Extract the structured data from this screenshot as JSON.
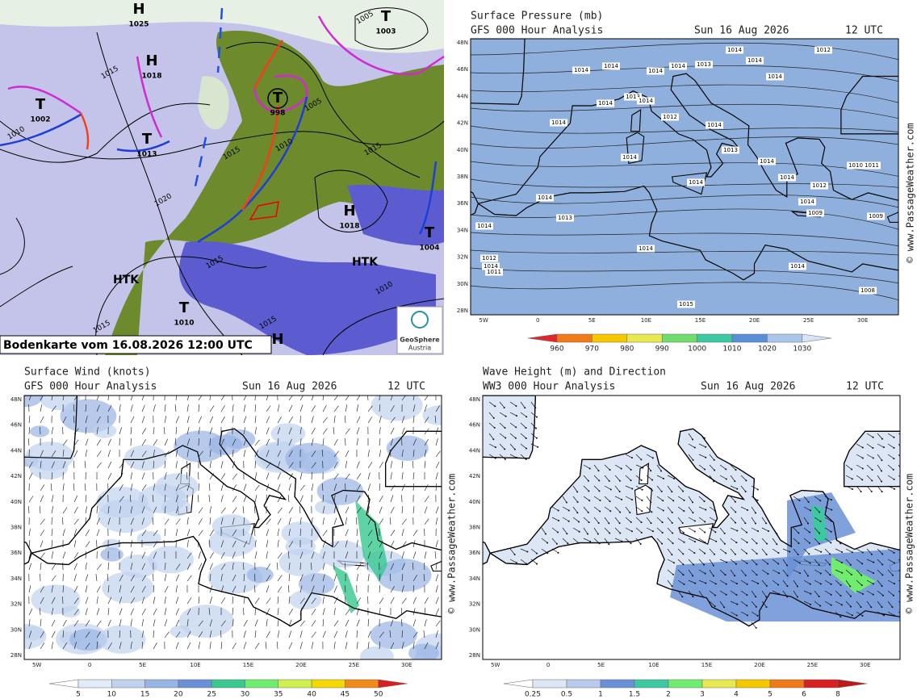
{
  "synoptic": {
    "caption": "Bodenkarte vom 16.08.2026 12:00 UTC",
    "logo": [
      "GeoSphere",
      "Austria"
    ],
    "centers": [
      {
        "letter": "H",
        "value": "1025"
      },
      {
        "letter": "H",
        "value": "1018"
      },
      {
        "letter": "T",
        "value": "1002"
      },
      {
        "letter": "T",
        "value": "1013"
      },
      {
        "letter": "T",
        "value": "998"
      },
      {
        "letter": "T",
        "value": "1003"
      },
      {
        "letter": "H",
        "value": "1018"
      },
      {
        "letter": "T",
        "value": "1004"
      },
      {
        "letter": "HTK",
        "value": null
      },
      {
        "letter": "HTK",
        "value": null
      },
      {
        "letter": "T",
        "value": "1010"
      },
      {
        "letter": "H",
        "value": null
      }
    ],
    "isobars": [
      "1015",
      "1010",
      "1015",
      "1010",
      "1015",
      "1005",
      "1020",
      "1015",
      "1010",
      "1015",
      "1015",
      "1005"
    ]
  },
  "lat_labels": [
    "48N",
    "46N",
    "44N",
    "42N",
    "40N",
    "38N",
    "36N",
    "34N",
    "32N",
    "30N",
    "28N"
  ],
  "lon_labels": [
    "5W",
    "0",
    "5E",
    "10E",
    "15E",
    "20E",
    "25E",
    "30E"
  ],
  "credit": "© www.PassageWeather.com",
  "panels": [
    {
      "title": "Surface Pressure (mb)",
      "model": "GFS 000 Hour Analysis",
      "date": "Sun 16 Aug 2026",
      "time": "12 UTC",
      "scale": [
        960,
        970,
        980,
        990,
        1000,
        1010,
        1020,
        1030
      ],
      "labels": [
        "1014",
        "1014",
        "1013",
        "1014",
        "1014",
        "1013",
        "1014",
        "1014",
        "1014",
        "1012",
        "1014",
        "1014",
        "1014",
        "1012",
        "1014",
        "1013",
        "1014",
        "1014",
        "1012",
        "1011",
        "1014",
        "1014",
        "1014",
        "1013",
        "1014",
        "1012",
        "1014",
        "1011",
        "1009",
        "1010",
        "1008",
        "1014",
        "1015",
        "1009",
        "1014",
        "1014"
      ]
    },
    {
      "title": "Surface Wind (knots)",
      "model": "GFS 000 Hour Analysis",
      "date": "Sun 16 Aug 2026",
      "time": "12 UTC",
      "scale": [
        5,
        10,
        15,
        20,
        25,
        30,
        35,
        40,
        45,
        50
      ]
    },
    {
      "title": "Wave Height (m) and Direction",
      "model": "WW3 000 Hour Analysis",
      "date": "Sun 16 Aug 2026",
      "time": "12 UTC",
      "scale": [
        0.25,
        0.5,
        1,
        1.5,
        2,
        3,
        4,
        5,
        6,
        8
      ]
    }
  ]
}
